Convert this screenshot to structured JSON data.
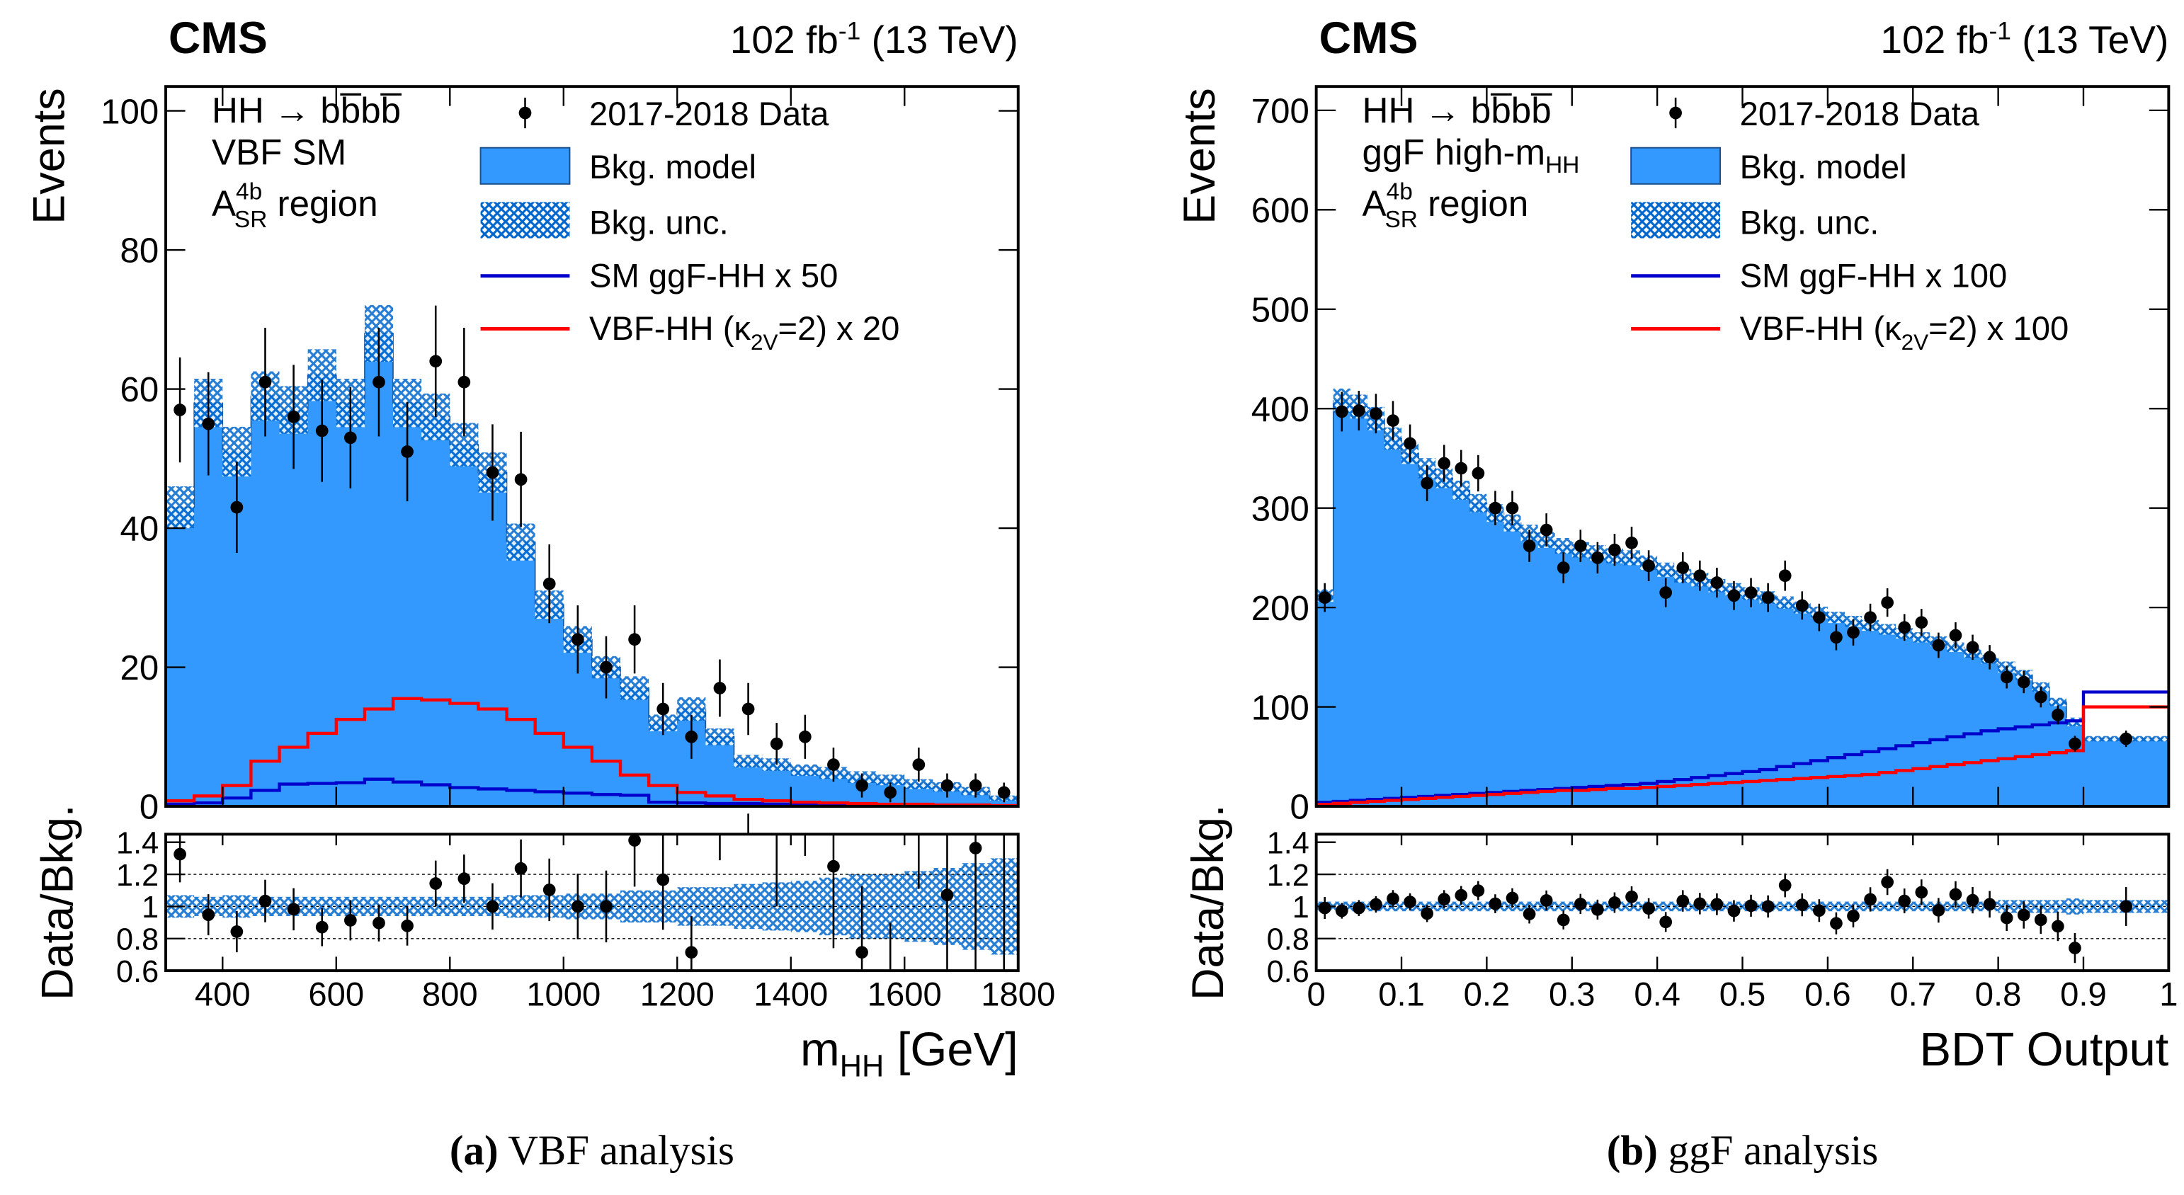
{
  "colors": {
    "bkg": "#3399ff",
    "unc": "#0066cc",
    "ggf": "#0000cc",
    "vbf": "#ff0000",
    "data": "#000000"
  },
  "chart_data": [
    {
      "type": "bar",
      "panel": "a",
      "caption_label": "(a)",
      "caption_text": "VBF analysis",
      "cms": "CMS",
      "lumi": "102 fb",
      "lumi_sup": "-1",
      "energy": "(13 TeV)",
      "ylabel": "Events",
      "ratio_ylabel": "Data/Bkg.",
      "xlabel": "m",
      "xlabel_sub": "HH",
      "xlabel_unit": "[GeV]",
      "info": [
        "HH → bb̅bb̅",
        "VBF SM",
        "A",
        "4b",
        "SR",
        " region"
      ],
      "legend": [
        "2017-2018 Data",
        "Bkg. model",
        "Bkg. unc.",
        "SM ggF-HH x 50",
        "VBF-HH (κ",
        "2V",
        "=2) x 20"
      ],
      "xlim": [
        300,
        1800
      ],
      "ylim": [
        0,
        103.5
      ],
      "ratio_ylim": [
        0.6,
        1.45
      ],
      "xticks": [
        400,
        600,
        800,
        1000,
        1200,
        1400,
        1600,
        1800
      ],
      "yticks": [
        0,
        20,
        40,
        60,
        80,
        100
      ],
      "ratio_yticks": [
        0.6,
        0.8,
        1,
        1.2,
        1.4
      ],
      "bin_edges": [
        300,
        350,
        400,
        450,
        500,
        550,
        600,
        650,
        700,
        750,
        800,
        850,
        900,
        950,
        1000,
        1050,
        1100,
        1150,
        1200,
        1250,
        1300,
        1350,
        1400,
        1450,
        1500,
        1550,
        1600,
        1650,
        1700,
        1750,
        1800
      ],
      "bkg": [
        43,
        58,
        51,
        59,
        57,
        62,
        58,
        68,
        58,
        56,
        52,
        48,
        38,
        29,
        24,
        20,
        17,
        12,
        14,
        10,
        6.5,
        6,
        5.2,
        4.8,
        4.2,
        3.8,
        3.2,
        2.8,
        2.2,
        1.2
      ],
      "bkg_unc_rel": [
        0.07,
        0.06,
        0.07,
        0.06,
        0.06,
        0.06,
        0.06,
        0.06,
        0.06,
        0.06,
        0.06,
        0.06,
        0.07,
        0.07,
        0.08,
        0.08,
        0.1,
        0.1,
        0.12,
        0.12,
        0.14,
        0.15,
        0.16,
        0.18,
        0.2,
        0.2,
        0.22,
        0.24,
        0.27,
        0.3
      ],
      "data": [
        57,
        55,
        43,
        61,
        56,
        54,
        53,
        61,
        51,
        64,
        61,
        48,
        47,
        32,
        24,
        20,
        24,
        14,
        10,
        17,
        14,
        9,
        10,
        6,
        3,
        2,
        6,
        3,
        3,
        2
      ],
      "ggf": [
        0.3,
        0.5,
        1.2,
        2.3,
        3.2,
        3.3,
        3.4,
        3.9,
        3.5,
        3.1,
        2.7,
        2.5,
        2.3,
        2.1,
        1.9,
        1.7,
        1.6,
        0.6,
        0.5,
        0.4,
        0.4,
        0.3,
        0.3,
        0.2,
        0.2,
        0.2,
        0.1,
        0.1,
        0.1,
        0.1
      ],
      "vbf": [
        0.8,
        1.5,
        3,
        6.5,
        8.5,
        10.5,
        12.5,
        14,
        15.5,
        15.3,
        14.8,
        14,
        12.5,
        10.5,
        8.5,
        6.5,
        4.5,
        3,
        2,
        1.5,
        1,
        0.8,
        0.6,
        0.5,
        0.4,
        0.3,
        0.3,
        0.2,
        0.2,
        0.1
      ]
    },
    {
      "type": "bar",
      "panel": "b",
      "caption_label": "(b)",
      "caption_text": "ggF analysis",
      "cms": "CMS",
      "lumi": "102 fb",
      "lumi_sup": "-1",
      "energy": "(13 TeV)",
      "ylabel": "Events",
      "ratio_ylabel": "Data/Bkg.",
      "xlabel": "BDT Output",
      "xlabel_sub": "",
      "xlabel_unit": "",
      "info": [
        "HH → bb̅bb̅",
        "ggF high-m",
        "A",
        "4b",
        "SR",
        " region",
        "HH"
      ],
      "legend": [
        "2017-2018 Data",
        "Bkg. model",
        "Bkg. unc.",
        "SM ggF-HH x 100",
        "VBF-HH (κ",
        "2V",
        "=2) x 100"
      ],
      "xlim": [
        0,
        1
      ],
      "ylim": [
        0,
        724
      ],
      "ratio_ylim": [
        0.6,
        1.45
      ],
      "xticks": [
        0,
        0.1,
        0.2,
        0.3,
        0.4,
        0.5,
        0.6,
        0.7,
        0.8,
        0.9,
        1
      ],
      "yticks": [
        0,
        100,
        200,
        300,
        400,
        500,
        600,
        700
      ],
      "ratio_yticks": [
        0.6,
        0.8,
        1,
        1.2,
        1.4
      ],
      "bin_edges": [
        0,
        0.02,
        0.04,
        0.06,
        0.08,
        0.1,
        0.12,
        0.14,
        0.16,
        0.18,
        0.2,
        0.22,
        0.24,
        0.26,
        0.28,
        0.3,
        0.32,
        0.34,
        0.36,
        0.38,
        0.4,
        0.42,
        0.44,
        0.46,
        0.48,
        0.5,
        0.52,
        0.54,
        0.56,
        0.58,
        0.6,
        0.62,
        0.64,
        0.66,
        0.68,
        0.7,
        0.72,
        0.74,
        0.76,
        0.78,
        0.8,
        0.82,
        0.84,
        0.86,
        0.88,
        0.9,
        1.0
      ],
      "bkg": [
        212,
        408,
        402,
        390,
        370,
        355,
        340,
        330,
        318,
        305,
        295,
        285,
        275,
        268,
        262,
        258,
        255,
        252,
        250,
        245,
        238,
        232,
        228,
        222,
        218,
        214,
        210,
        205,
        200,
        195,
        190,
        186,
        182,
        178,
        174,
        170,
        166,
        160,
        154,
        148,
        140,
        132,
        120,
        105,
        85,
        68
      ],
      "bkg_unc_rel": [
        0.03,
        0.03,
        0.03,
        0.03,
        0.03,
        0.03,
        0.03,
        0.03,
        0.03,
        0.03,
        0.03,
        0.03,
        0.03,
        0.03,
        0.03,
        0.03,
        0.03,
        0.03,
        0.03,
        0.03,
        0.03,
        0.03,
        0.03,
        0.03,
        0.03,
        0.03,
        0.03,
        0.03,
        0.03,
        0.03,
        0.03,
        0.03,
        0.03,
        0.03,
        0.03,
        0.03,
        0.03,
        0.03,
        0.03,
        0.03,
        0.04,
        0.04,
        0.04,
        0.04,
        0.05,
        0.04
      ],
      "data": [
        210,
        397,
        398,
        395,
        388,
        365,
        325,
        345,
        340,
        335,
        300,
        300,
        262,
        278,
        240,
        262,
        250,
        258,
        265,
        242,
        215,
        240,
        232,
        225,
        212,
        215,
        210,
        232,
        202,
        190,
        170,
        175,
        190,
        205,
        180,
        185,
        162,
        172,
        160,
        150,
        130,
        125,
        110,
        92,
        63,
        68
      ],
      "ggf": [
        4,
        5,
        6,
        7,
        8,
        9,
        10,
        11,
        12,
        13,
        14,
        15,
        16,
        17,
        18,
        19,
        20,
        21,
        22,
        23,
        25,
        27,
        29,
        31,
        33,
        35,
        37,
        40,
        43,
        46,
        49,
        52,
        55,
        58,
        61,
        64,
        67,
        70,
        73,
        76,
        78,
        80,
        82,
        84,
        86,
        115
      ],
      "vbf": [
        2,
        3,
        4,
        5,
        6,
        7,
        8,
        9,
        10,
        11,
        12,
        13,
        14,
        15,
        16,
        16,
        17,
        18,
        18,
        19,
        20,
        21,
        22,
        23,
        24,
        25,
        26,
        27,
        28,
        29,
        30,
        31,
        32,
        34,
        36,
        38,
        40,
        42,
        44,
        46,
        48,
        50,
        52,
        54,
        56,
        100
      ]
    }
  ]
}
